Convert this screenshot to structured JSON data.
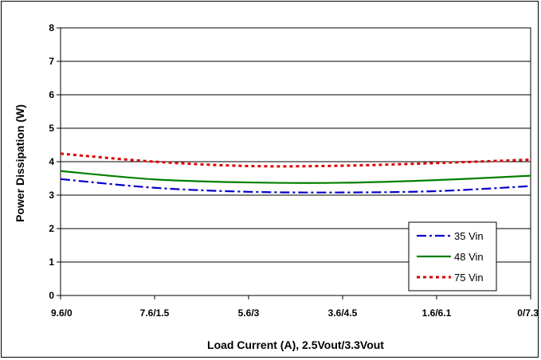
{
  "chart_data": {
    "type": "line",
    "title": "",
    "xlabel": "Load Current (A), 2.5Vout/3.3Vout",
    "ylabel": "Power Dissipation (W)",
    "categories": [
      "9.6/0",
      "7.6/1.5",
      "5.6/3",
      "3.6/4.5",
      "1.6/6.1",
      "0/7.3"
    ],
    "ylim": [
      0,
      8
    ],
    "yticks": [
      "0",
      "1",
      "2",
      "3",
      "4",
      "5",
      "6",
      "7",
      "8"
    ],
    "grid": "horizontal",
    "legend_position": "bottom-right",
    "series": [
      {
        "name": "35 Vin",
        "color": "#0000cc",
        "dash": "dash-dot",
        "values": [
          3.48,
          3.22,
          3.1,
          3.08,
          3.12,
          3.27
        ]
      },
      {
        "name": "48 Vin",
        "color": "#008000",
        "dash": "solid",
        "values": [
          3.72,
          3.47,
          3.38,
          3.37,
          3.45,
          3.58
        ]
      },
      {
        "name": "75 Vin",
        "color": "#dd0000",
        "dash": "dot",
        "values": [
          4.24,
          4.0,
          3.87,
          3.88,
          3.96,
          4.06
        ]
      }
    ]
  }
}
